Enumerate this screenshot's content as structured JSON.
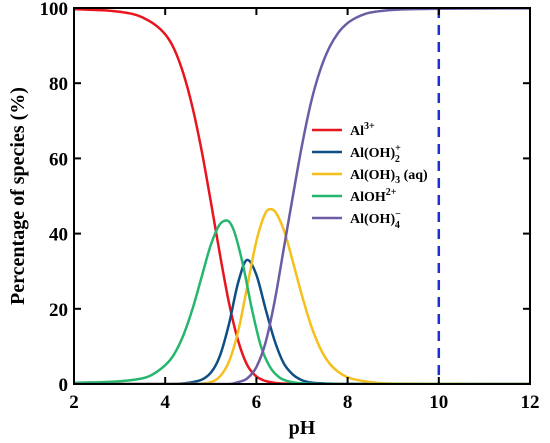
{
  "chart_data": {
    "type": "line",
    "title": "",
    "xlabel": "pH",
    "ylabel": "Percentage of species (%)",
    "xlim": [
      2,
      12
    ],
    "ylim": [
      0,
      100
    ],
    "xticks": [
      2,
      4,
      6,
      8,
      10,
      12
    ],
    "yticks": [
      0,
      20,
      40,
      60,
      80,
      100
    ],
    "grid": false,
    "legend_position": "center-right",
    "reference_line": {
      "x": 10,
      "style": "dashed",
      "color": "#1f2fd6"
    },
    "series": [
      {
        "name": "Al3+",
        "label_base": "Al",
        "label_sup": "3+",
        "label_sub": "",
        "label_suffix": "",
        "color": "#e8141e",
        "x": [
          2,
          3,
          3.5,
          4,
          4.2,
          4.4,
          4.6,
          4.8,
          5.0,
          5.2,
          5.4,
          5.6,
          5.8,
          6.0,
          6.2,
          6.4,
          6.6,
          7.0,
          8,
          12
        ],
        "y": [
          99.7,
          99.0,
          97.5,
          93.0,
          89.0,
          82.5,
          73.5,
          62.0,
          48.5,
          34.5,
          21.5,
          11.5,
          5.0,
          2.0,
          0.8,
          0.3,
          0.1,
          0.0,
          0.0,
          0.0
        ]
      },
      {
        "name": "Al(OH)2+",
        "label_base": "Al(OH)",
        "label_sup": "+",
        "label_sub": "2",
        "label_suffix": "",
        "color": "#0e4f86",
        "x": [
          2,
          4.0,
          4.6,
          5.0,
          5.2,
          5.4,
          5.6,
          5.8,
          6.0,
          6.2,
          6.4,
          6.6,
          6.8,
          7.0,
          7.2,
          7.6,
          8,
          12
        ],
        "y": [
          0,
          0.0,
          0.5,
          3.0,
          7.5,
          16.0,
          27.0,
          33.0,
          29.0,
          20.0,
          11.5,
          5.5,
          2.5,
          1.0,
          0.4,
          0.1,
          0.0,
          0.0
        ]
      },
      {
        "name": "Al(OH)3 (aq)",
        "label_base": "Al(OH)",
        "label_sup": "",
        "label_sub": "3",
        "label_suffix": " (aq)",
        "color": "#f5bf1c",
        "x": [
          2,
          4.6,
          5.0,
          5.2,
          5.4,
          5.6,
          5.8,
          6.0,
          6.2,
          6.3,
          6.4,
          6.6,
          6.8,
          7.0,
          7.2,
          7.4,
          7.6,
          7.8,
          8.0,
          8.5,
          9.0,
          12
        ],
        "y": [
          0,
          0.0,
          0.5,
          2.0,
          6.0,
          14.0,
          26.0,
          38.0,
          45.5,
          46.5,
          46.0,
          41.0,
          32.5,
          23.5,
          15.5,
          9.5,
          5.5,
          3.2,
          1.8,
          0.5,
          0.1,
          0.0
        ]
      },
      {
        "name": "AlOH2+",
        "label_base": "AlOH",
        "label_sup": "2+",
        "label_sub": "",
        "label_suffix": "",
        "color": "#25b76d",
        "x": [
          2,
          3.5,
          4.0,
          4.2,
          4.4,
          4.6,
          4.8,
          5.0,
          5.2,
          5.35,
          5.5,
          5.7,
          5.9,
          6.1,
          6.3,
          6.5,
          6.7,
          7.0,
          7.5,
          12
        ],
        "y": [
          0.3,
          1.5,
          5.0,
          8.0,
          13.0,
          20.0,
          28.5,
          37.0,
          42.5,
          43.5,
          41.0,
          32.0,
          20.0,
          10.0,
          4.5,
          1.8,
          0.7,
          0.2,
          0.0,
          0.0
        ]
      },
      {
        "name": "Al(OH)4-",
        "label_base": "Al(OH)",
        "label_sup": "−",
        "label_sub": "4",
        "label_suffix": "",
        "color": "#6b5ca5",
        "x": [
          2,
          5.4,
          5.6,
          5.8,
          6.0,
          6.2,
          6.4,
          6.6,
          6.8,
          7.0,
          7.2,
          7.4,
          7.6,
          7.8,
          8.0,
          8.2,
          8.4,
          8.6,
          9.0,
          10,
          12
        ],
        "y": [
          0,
          0.0,
          0.5,
          1.5,
          4.5,
          11.0,
          22.0,
          36.0,
          50.0,
          63.5,
          75.0,
          83.5,
          89.5,
          93.5,
          96.0,
          97.5,
          98.5,
          99.0,
          99.5,
          99.8,
          99.9
        ]
      }
    ]
  }
}
